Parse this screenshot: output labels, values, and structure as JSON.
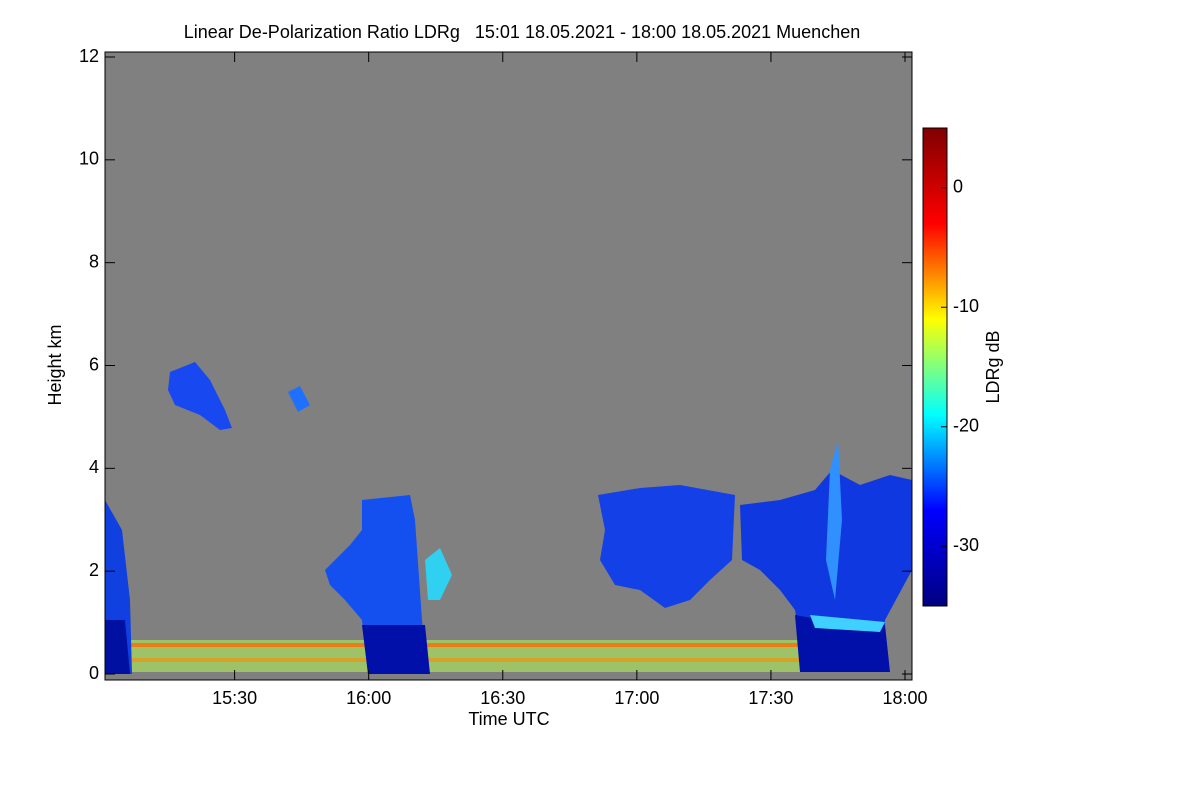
{
  "chart_data": {
    "type": "heatmap",
    "title": "Linear De-Polarization Ratio LDRg   15:01 18.05.2021 - 18:00 18.05.2021 Muenchen",
    "x_label": "Time UTC",
    "y_label": "Height km",
    "colorbar_label": "LDRg dB",
    "xlim": [
      901,
      1080
    ],
    "xticks": [
      {
        "value": 930,
        "label": "15:30"
      },
      {
        "value": 960,
        "label": "16:00"
      },
      {
        "value": 990,
        "label": "16:30"
      },
      {
        "value": 1020,
        "label": "17:00"
      },
      {
        "value": 1050,
        "label": "17:30"
      },
      {
        "value": 1080,
        "label": "18:00"
      }
    ],
    "ylim": [
      0,
      12
    ],
    "yticks": [
      0,
      2,
      4,
      6,
      8,
      10,
      12
    ],
    "clim": [
      -35,
      5
    ],
    "cticks": [
      -30,
      -20,
      -10,
      0
    ],
    "colormap": [
      "#00007f",
      "#0000ff",
      "#00ffff",
      "#ffff00",
      "#ff0000",
      "#7f0000"
    ],
    "background": "#808080"
  }
}
